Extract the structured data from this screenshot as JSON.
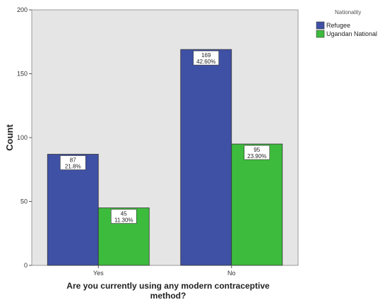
{
  "chart_data": {
    "type": "bar",
    "title": "",
    "xlabel": "Are you currently using any modern contraceptive method?",
    "ylabel": "Count",
    "categories": [
      "Yes",
      "No"
    ],
    "series": [
      {
        "name": "Refugee",
        "color": "#3f51a5",
        "values": [
          87,
          169
        ],
        "labels": [
          "87\n21.8%",
          "169\n42.60%"
        ]
      },
      {
        "name": "Ugandan National",
        "color": "#3dbb3d",
        "values": [
          45,
          95
        ],
        "labels": [
          "45\n11.30%",
          "95\n23.90%"
        ]
      }
    ],
    "ylim": [
      0,
      200
    ],
    "yticks": [
      0,
      50,
      100,
      150,
      200
    ],
    "legend": {
      "title": "Nationality",
      "position": "right"
    },
    "grid": false,
    "plot_background": "#e5e5e5"
  }
}
